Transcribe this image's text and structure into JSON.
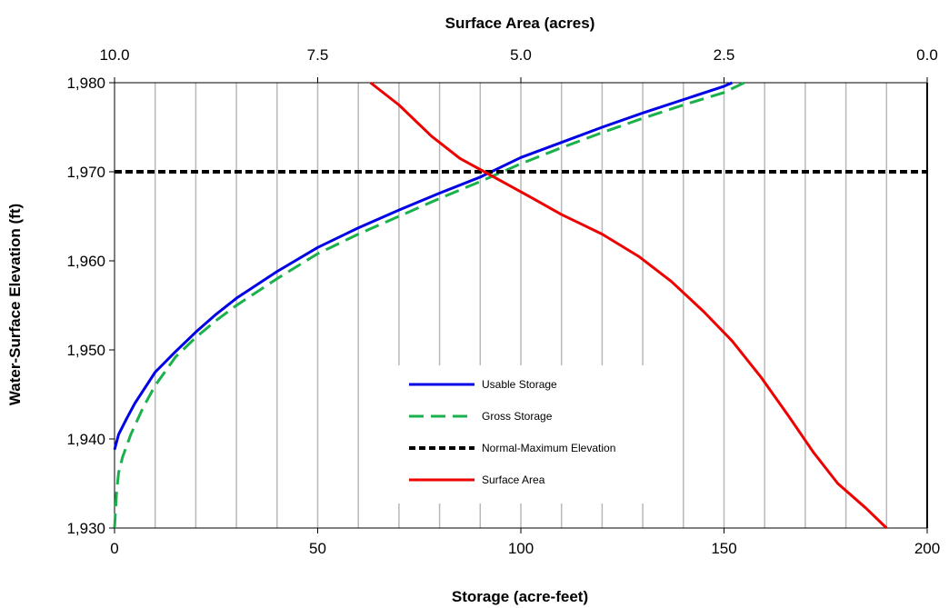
{
  "chart_data": {
    "type": "line",
    "title": "",
    "xlabel": "Storage (acre-feet)",
    "x2label": "Surface Area (acres)",
    "ylabel": "Water-Surface Elevation (ft)",
    "xlim": [
      0,
      200
    ],
    "x2lim": [
      10.0,
      0.0
    ],
    "ylim": [
      1930,
      1980
    ],
    "x_ticks": [
      "0",
      "50",
      "100",
      "150",
      "200"
    ],
    "x2_ticks": [
      "10.0",
      "7.5",
      "5.0",
      "2.5",
      "0.0"
    ],
    "y_ticks": [
      "1,930",
      "1,940",
      "1,950",
      "1,960",
      "1,970",
      "1,980"
    ],
    "grid": "vertical",
    "legend_position": "center-bottom",
    "series": [
      {
        "name": "Usable Storage",
        "axis": "bottom",
        "color": "#0000e6",
        "style": "solid",
        "points": [
          [
            0,
            1938.8
          ],
          [
            1,
            1940.5
          ],
          [
            3,
            1942.3
          ],
          [
            5,
            1944
          ],
          [
            10,
            1947.5
          ],
          [
            15,
            1949.8
          ],
          [
            20,
            1952
          ],
          [
            25,
            1954
          ],
          [
            30,
            1955.8
          ],
          [
            40,
            1958.8
          ],
          [
            50,
            1961.5
          ],
          [
            60,
            1963.7
          ],
          [
            70,
            1965.7
          ],
          [
            80,
            1967.6
          ],
          [
            90,
            1969.4
          ],
          [
            100,
            1971.6
          ],
          [
            110,
            1973.3
          ],
          [
            120,
            1975
          ],
          [
            130,
            1976.6
          ],
          [
            140,
            1978.1
          ],
          [
            150,
            1979.6
          ],
          [
            152,
            1980
          ]
        ]
      },
      {
        "name": "Gross Storage",
        "axis": "bottom",
        "color": "#1ab04c",
        "style": "dashed",
        "points": [
          [
            0,
            1930
          ],
          [
            0.5,
            1934
          ],
          [
            1,
            1936.2
          ],
          [
            2,
            1938
          ],
          [
            4,
            1940.5
          ],
          [
            7,
            1943.5
          ],
          [
            10,
            1946
          ],
          [
            15,
            1949.2
          ],
          [
            20,
            1951.4
          ],
          [
            25,
            1953.3
          ],
          [
            30,
            1955
          ],
          [
            40,
            1958
          ],
          [
            50,
            1960.8
          ],
          [
            60,
            1963
          ],
          [
            70,
            1965
          ],
          [
            80,
            1967
          ],
          [
            90,
            1968.9
          ],
          [
            100,
            1970.9
          ],
          [
            110,
            1972.7
          ],
          [
            120,
            1974.4
          ],
          [
            130,
            1976
          ],
          [
            140,
            1977.5
          ],
          [
            150,
            1978.9
          ],
          [
            155,
            1980
          ]
        ]
      },
      {
        "name": "Normal-Maximum Elevation",
        "axis": "bottom",
        "color": "#000000",
        "style": "dotted",
        "points": [
          [
            0,
            1970
          ],
          [
            200,
            1970
          ]
        ]
      },
      {
        "name": "Surface Area",
        "axis": "top",
        "color": "#ee0000",
        "style": "solid",
        "points": [
          [
            6.85,
            1980
          ],
          [
            6.5,
            1977.5
          ],
          [
            6.1,
            1974
          ],
          [
            5.75,
            1971.5
          ],
          [
            5.45,
            1970
          ],
          [
            5.15,
            1968.5
          ],
          [
            4.85,
            1967
          ],
          [
            4.5,
            1965.2
          ],
          [
            4.0,
            1963
          ],
          [
            3.55,
            1960.5
          ],
          [
            3.15,
            1957.7
          ],
          [
            2.75,
            1954.3
          ],
          [
            2.4,
            1951
          ],
          [
            2.05,
            1947
          ],
          [
            1.7,
            1942.5
          ],
          [
            1.4,
            1938.5
          ],
          [
            1.1,
            1935
          ],
          [
            0.75,
            1932.2
          ],
          [
            0.5,
            1930
          ]
        ]
      }
    ]
  }
}
